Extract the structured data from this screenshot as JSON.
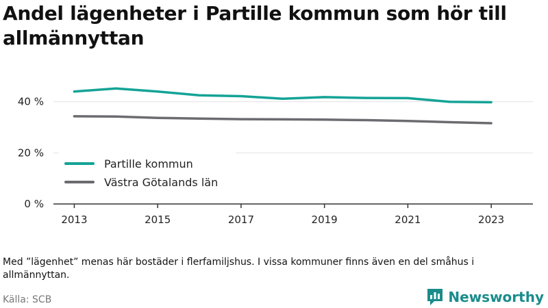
{
  "title": "Andel lägenheter i Partille kommun som hör till allmännyttan",
  "note": "Med ”lägenhet” menas här bostäder i flerfamiljshus. I vissa kommuner finns även en del småhus i allmännyttan.",
  "source": "Källa: SCB",
  "brand": {
    "name": "Newsworthy",
    "icon": "newsworthy-logo-icon",
    "color": "#1a8c8c"
  },
  "chart_data": {
    "type": "line",
    "title": "Andel lägenheter i Partille kommun som hör till allmännyttan",
    "xlabel": "",
    "ylabel": "",
    "x": [
      2013,
      2014,
      2015,
      2016,
      2017,
      2018,
      2019,
      2020,
      2021,
      2022,
      2023
    ],
    "xticks": [
      2013,
      2015,
      2017,
      2019,
      2021,
      2023
    ],
    "xlim": [
      2012.5,
      2024
    ],
    "ylim": [
      0,
      45
    ],
    "yticks": [
      {
        "value": 0,
        "label": "0 %"
      },
      {
        "value": 20,
        "label": "20 %"
      },
      {
        "value": 40,
        "label": "40 %"
      }
    ],
    "grid": true,
    "legend": "bottom-left",
    "series": [
      {
        "name": "Partille kommun",
        "color": "#14a396",
        "values": [
          44.0,
          45.2,
          44.0,
          42.5,
          42.2,
          41.2,
          41.8,
          41.5,
          41.4,
          40.0,
          39.8
        ]
      },
      {
        "name": "Västra Götalands län",
        "color": "#6b6b70",
        "values": [
          34.3,
          34.2,
          33.7,
          33.4,
          33.2,
          33.1,
          33.0,
          32.8,
          32.5,
          32.0,
          31.6
        ]
      }
    ]
  }
}
